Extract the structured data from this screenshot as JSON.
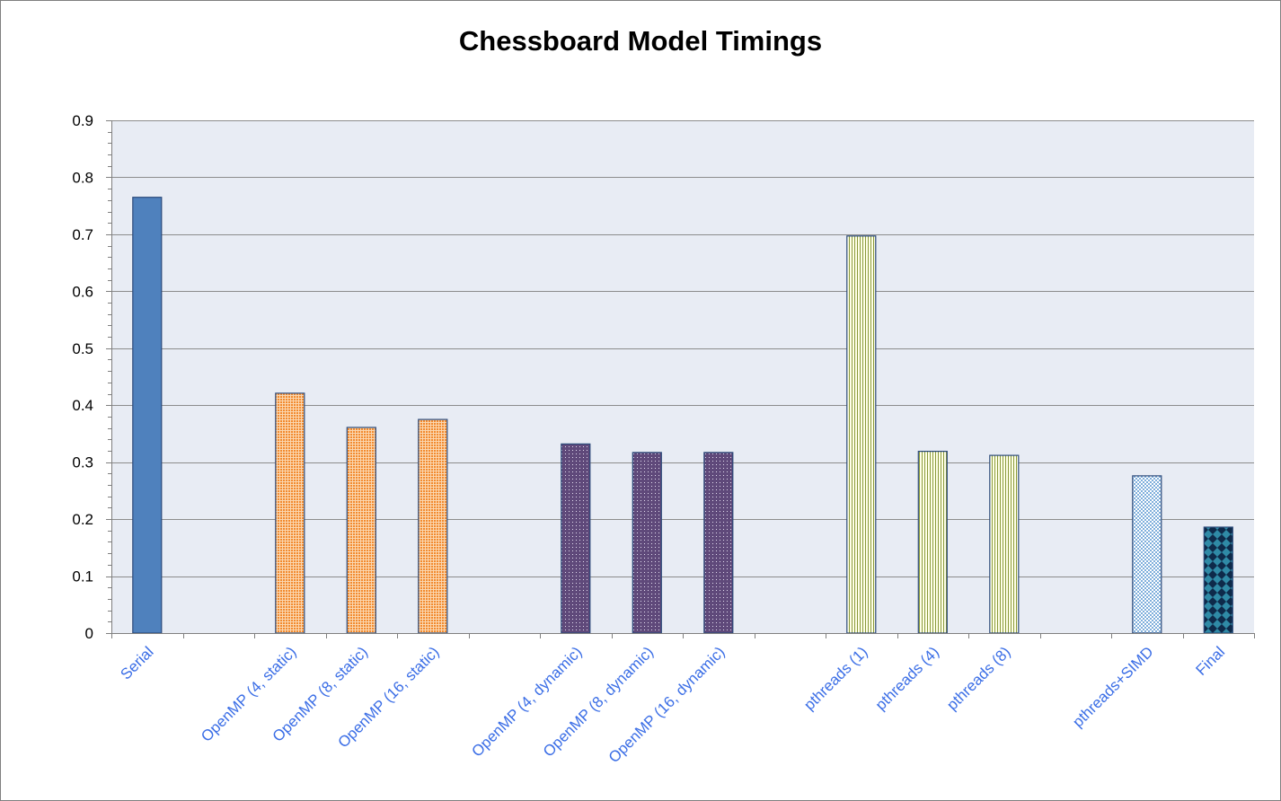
{
  "chart_data": {
    "type": "bar",
    "title": "Chessboard Model Timings",
    "xlabel": "",
    "ylabel": "",
    "ylim": [
      0,
      0.9
    ],
    "yticks": [
      "0",
      "0.1",
      "0.2",
      "0.3",
      "0.4",
      "0.5",
      "0.6",
      "0.7",
      "0.8",
      "0.9"
    ],
    "grid": true,
    "legend": "none",
    "categories": [
      "Serial",
      "",
      "OpenMP (4, static)",
      "OpenMP (8, static)",
      "OpenMP (16, static)",
      "",
      "OpenMP (4, dynamic)",
      "OpenMP (8, dynamic)",
      "OpenMP (16, dynamic)",
      "",
      "pthreads (1)",
      "pthreads (4)",
      "pthreads (8)",
      "",
      "pthreads+SIMD",
      "Final"
    ],
    "values": [
      0.765,
      null,
      0.421,
      0.361,
      0.375,
      null,
      0.332,
      0.317,
      0.317,
      null,
      0.697,
      0.319,
      0.312,
      null,
      0.276,
      0.186
    ],
    "colors": {
      "plot_background": "#e8ecf4",
      "gridline": "#8c8c8c",
      "tick_label": "#3b6ee6",
      "serial": "#4f81bd",
      "openmp_static": "#f79646",
      "openmp_dynamic": "#5f497a",
      "pthreads": "#eef3a0",
      "pthreads_simd": "#8eb4e3",
      "final": "#1f4e79"
    }
  }
}
